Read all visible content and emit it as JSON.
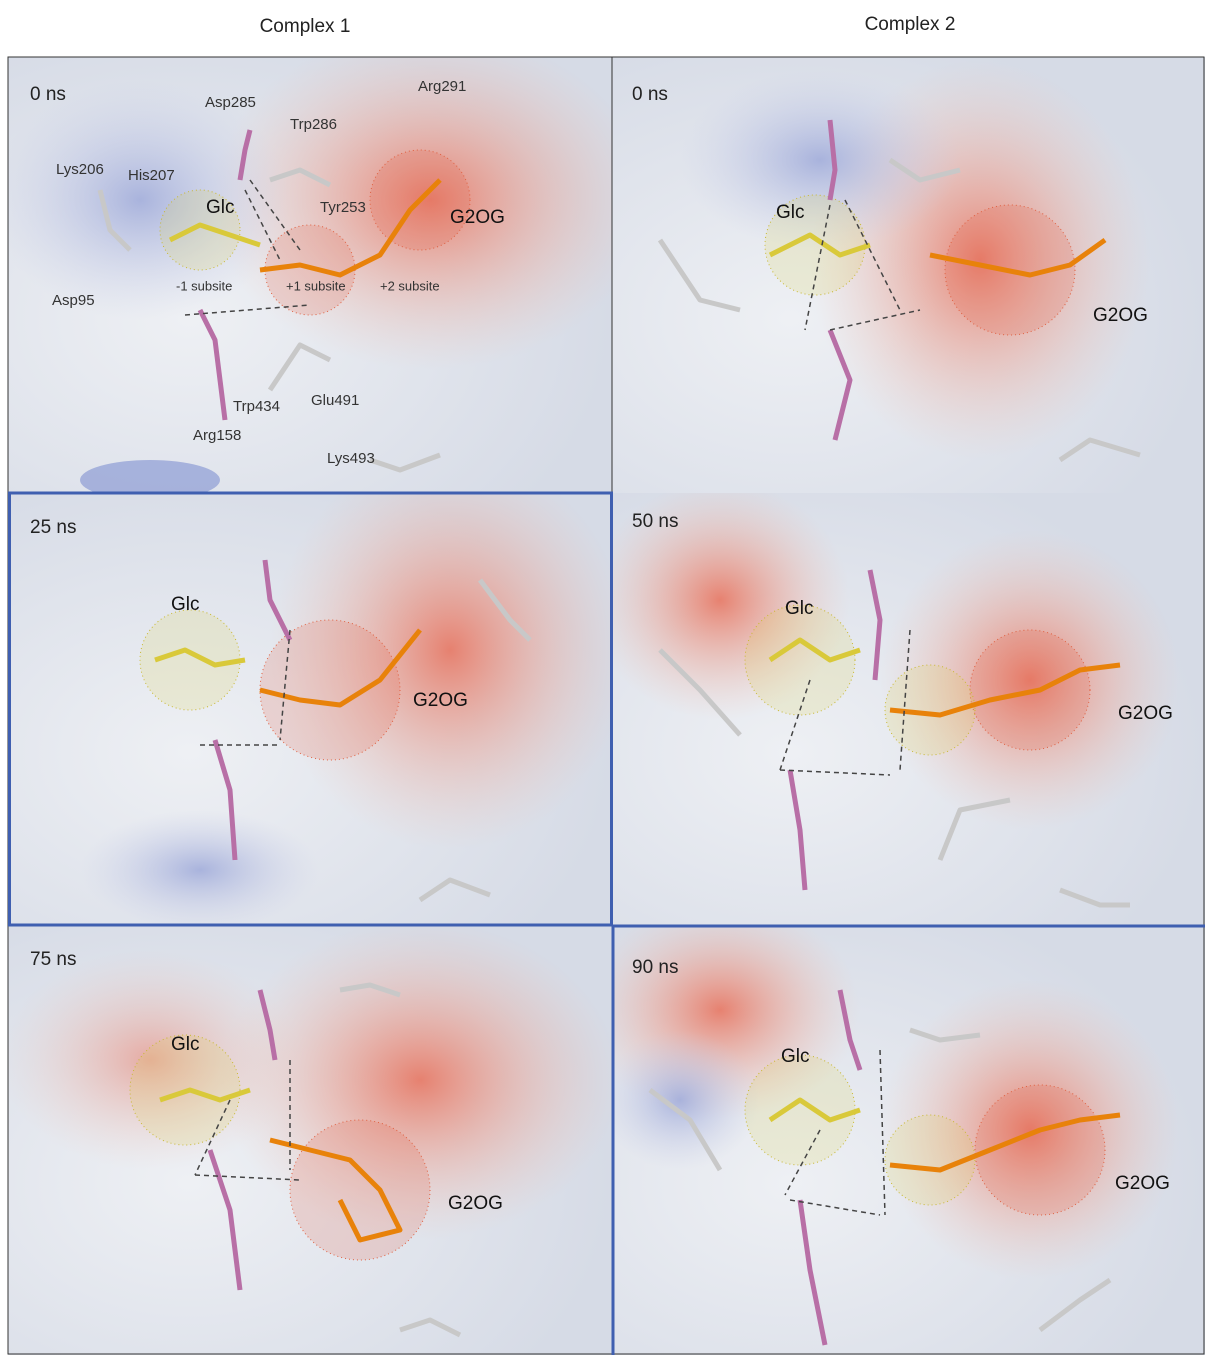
{
  "headers": [
    "Complex 1",
    "Complex 2"
  ],
  "panels": [
    {
      "time": "0 ns",
      "labels": [
        "Glc",
        "G2OG",
        "Asp285",
        "Trp286",
        "Arg291",
        "Lys206",
        "His207",
        "Tyr253",
        "Asp95",
        "-1 subsite",
        "+1 subsite",
        "+2 subsite",
        "Trp434",
        "Glu491",
        "Arg158",
        "Lys493"
      ]
    },
    {
      "time": "0 ns",
      "labels": [
        "Glc",
        "G2OG"
      ]
    },
    {
      "time": "25 ns",
      "labels": [
        "Glc",
        "G2OG"
      ]
    },
    {
      "time": "50 ns",
      "labels": [
        "Glc",
        "G2OG"
      ]
    },
    {
      "time": "75 ns",
      "labels": [
        "Glc",
        "G2OG"
      ]
    },
    {
      "time": "90 ns",
      "labels": [
        "Glc",
        "G2OG"
      ]
    }
  ]
}
